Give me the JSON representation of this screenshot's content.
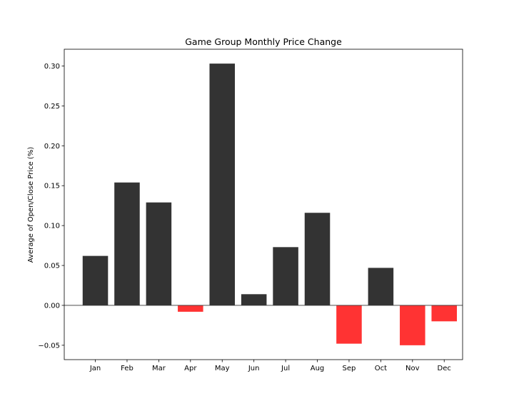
{
  "chart_data": {
    "type": "bar",
    "title": "Game Group Monthly Price Change",
    "xlabel": "",
    "ylabel": "Average of Open/Close Price (%)",
    "categories": [
      "Jan",
      "Feb",
      "Mar",
      "Apr",
      "May",
      "Jun",
      "Jul",
      "Aug",
      "Sep",
      "Oct",
      "Nov",
      "Dec"
    ],
    "values": [
      0.062,
      0.154,
      0.129,
      -0.008,
      0.303,
      0.014,
      0.073,
      0.116,
      -0.048,
      0.047,
      -0.05,
      -0.02
    ],
    "ylim": [
      -0.068,
      0.321
    ],
    "yticks": [
      -0.05,
      0.0,
      0.05,
      0.1,
      0.15,
      0.2,
      0.25,
      0.3
    ],
    "ytick_labels": [
      "−0.05",
      "0.00",
      "0.05",
      "0.10",
      "0.15",
      "0.20",
      "0.25",
      "0.30"
    ],
    "grid": false,
    "zero_line": true,
    "colors": {
      "positive": "#333333",
      "negative": "#ff3333",
      "zero_line": "#333333",
      "frame": "#000000"
    }
  }
}
